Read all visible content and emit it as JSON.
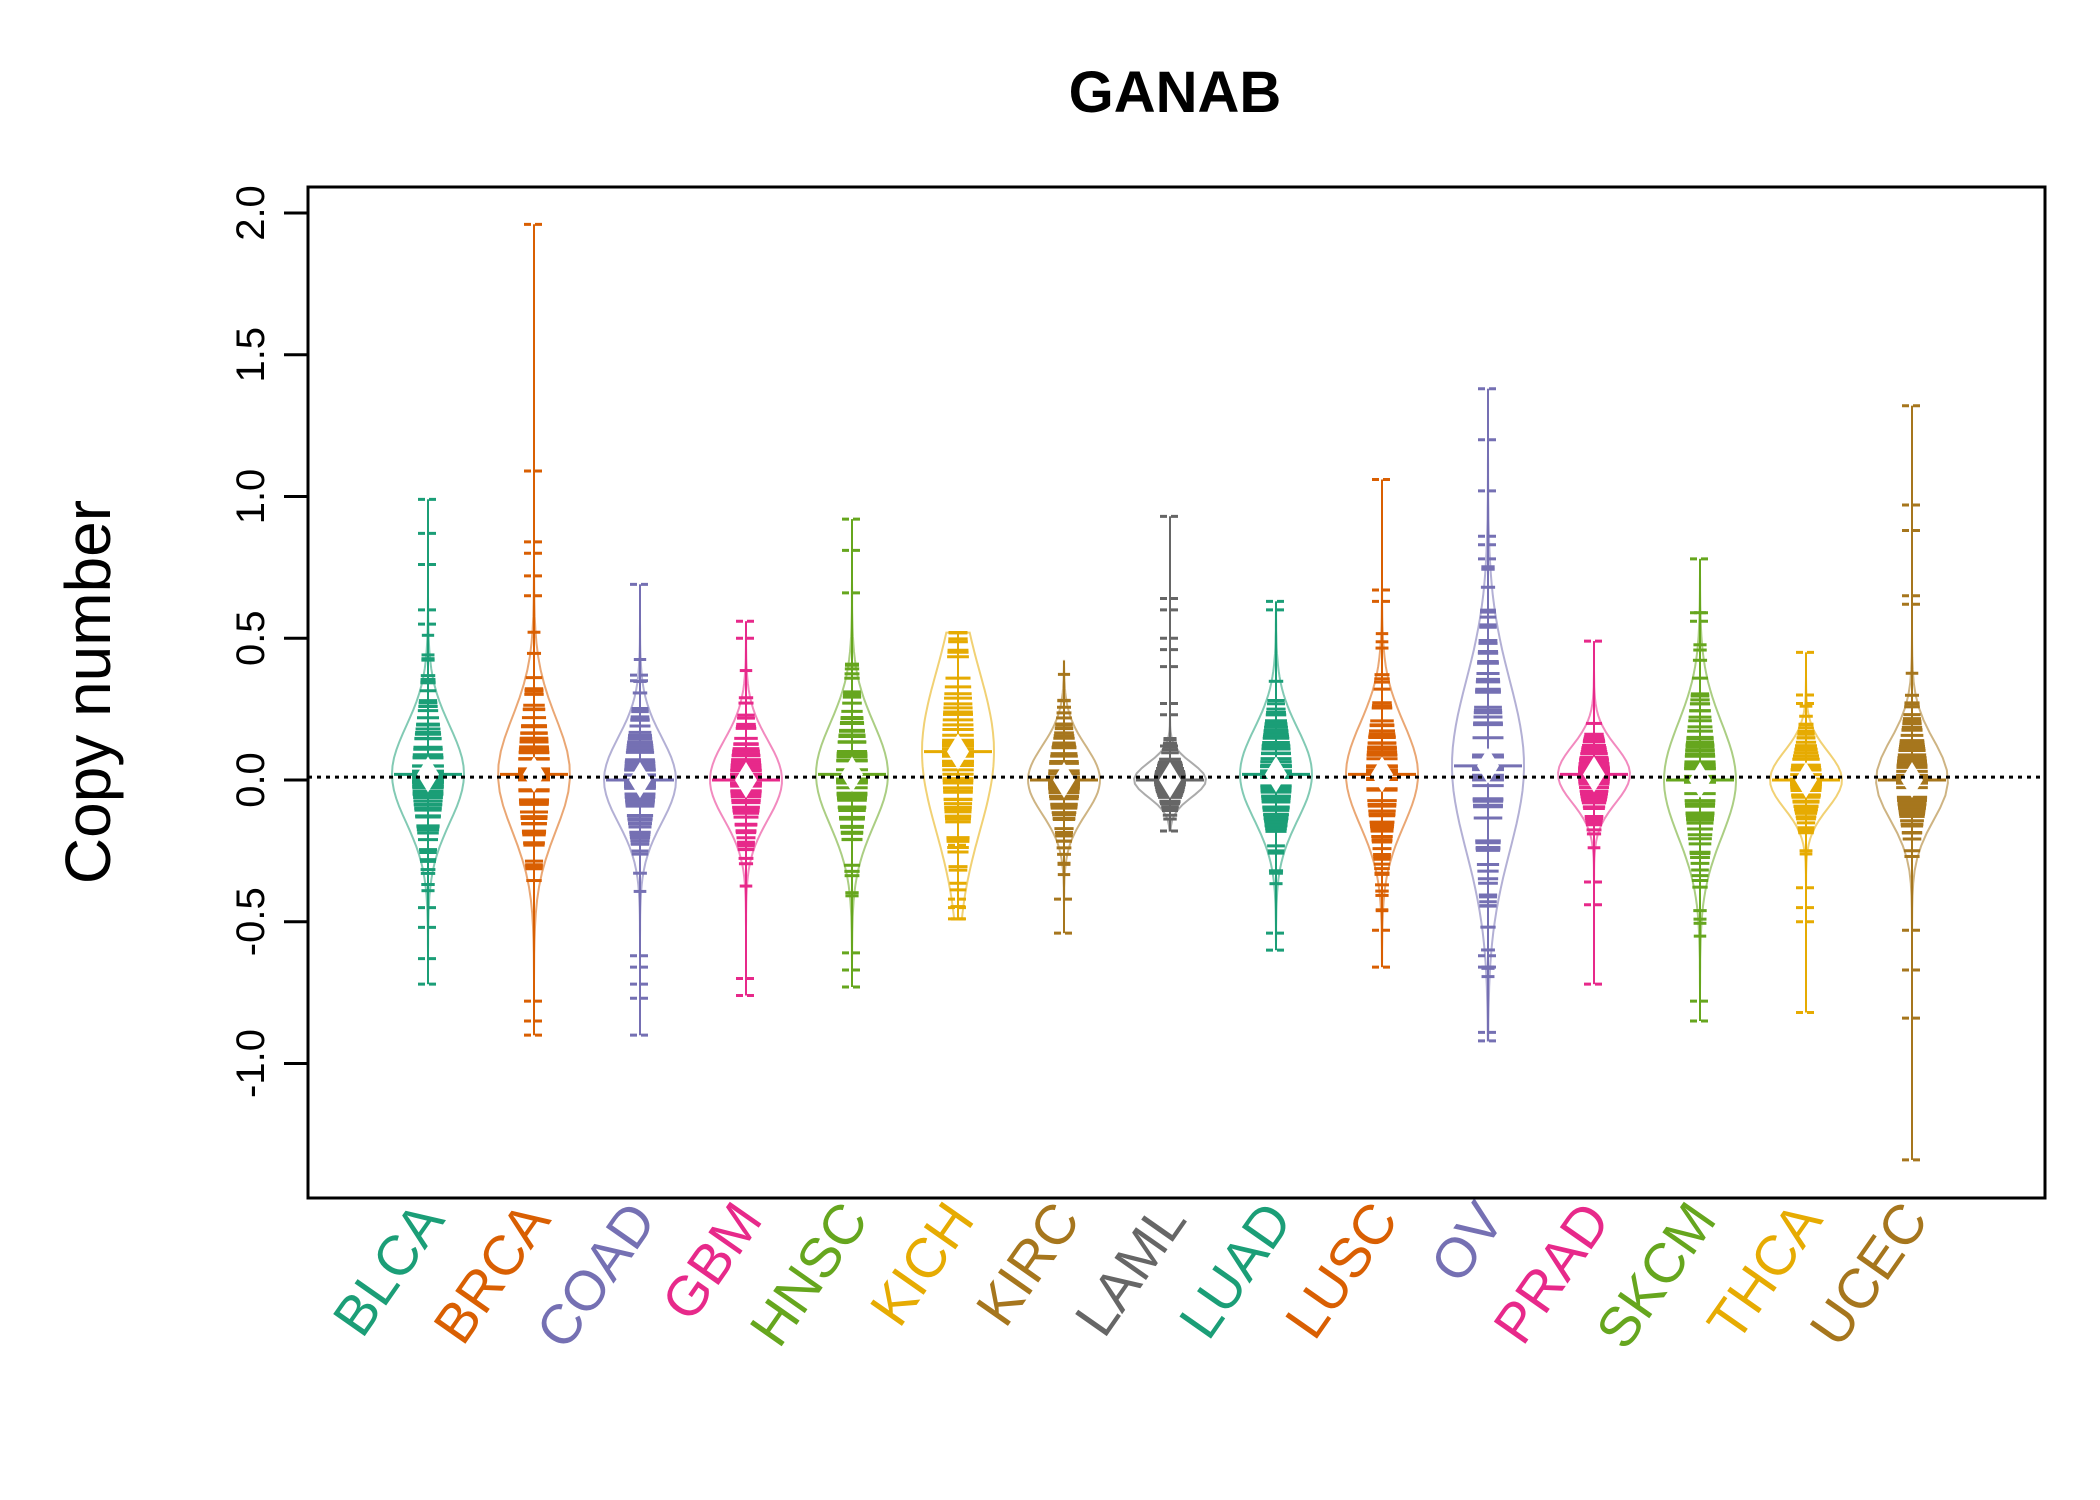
{
  "chart_data": {
    "type": "beanplot",
    "title": "GANAB",
    "xlabel": "",
    "ylabel": "Copy number",
    "ylim": [
      -1.5,
      2.1
    ],
    "yticks": [
      -1.0,
      -0.5,
      0.0,
      0.5,
      1.0,
      1.5,
      2.0
    ],
    "ytick_labels": [
      "-1.0",
      "-0.5",
      "0.0",
      "0.5",
      "1.0",
      "1.5",
      "2.0"
    ],
    "reference_line": 0.01,
    "categories": [
      "BLCA",
      "BRCA",
      "COAD",
      "GBM",
      "HNSC",
      "KICH",
      "KIRC",
      "LAML",
      "LUAD",
      "LUSC",
      "OV",
      "PRAD",
      "SKCM",
      "THCA",
      "UCEC"
    ],
    "colors": [
      "#1B9E77",
      "#D95F02",
      "#7570B3",
      "#E7298A",
      "#66A61E",
      "#E6AB02",
      "#A6761D",
      "#666666",
      "#1B9E77",
      "#D95F02",
      "#7570B3",
      "#E7298A",
      "#66A61E",
      "#E6AB02",
      "#A6761D"
    ],
    "series": [
      {
        "name": "BLCA",
        "min": -0.72,
        "max": 0.99,
        "median": 0.02,
        "spread": 0.17,
        "outliers": [
          0.99,
          0.87,
          0.76,
          0.6,
          0.55,
          -0.45,
          -0.52,
          -0.63,
          -0.72
        ]
      },
      {
        "name": "BRCA",
        "min": -0.9,
        "max": 1.96,
        "median": 0.02,
        "spread": 0.2,
        "outliers": [
          1.96,
          1.09,
          0.84,
          0.8,
          0.72,
          0.65,
          -0.78,
          -0.85,
          -0.9
        ]
      },
      {
        "name": "COAD",
        "min": -0.9,
        "max": 0.69,
        "median": 0.0,
        "spread": 0.15,
        "outliers": [
          0.69,
          0.37,
          0.35,
          -0.62,
          -0.66,
          -0.72,
          -0.77,
          -0.9
        ]
      },
      {
        "name": "GBM",
        "min": -0.76,
        "max": 0.56,
        "median": 0.0,
        "spread": 0.14,
        "outliers": [
          0.56,
          0.5,
          -0.7,
          -0.76
        ]
      },
      {
        "name": "HNSC",
        "min": -0.73,
        "max": 0.92,
        "median": 0.02,
        "spread": 0.18,
        "outliers": [
          0.92,
          0.81,
          0.66,
          -0.61,
          -0.67,
          -0.73
        ]
      },
      {
        "name": "KICH",
        "min": -0.49,
        "max": 0.52,
        "median": 0.1,
        "spread": 0.28,
        "outliers": [
          -0.23,
          -0.42,
          -0.45,
          -0.49
        ]
      },
      {
        "name": "KIRC",
        "min": -0.54,
        "max": 0.42,
        "median": 0.0,
        "spread": 0.12,
        "outliers": [
          -0.42,
          -0.54
        ]
      },
      {
        "name": "LAML",
        "min": -0.18,
        "max": 0.93,
        "median": 0.0,
        "spread": 0.06,
        "outliers": [
          0.93,
          0.64,
          0.6,
          0.5,
          0.46,
          0.4,
          0.27,
          0.23,
          0.12,
          -0.18
        ]
      },
      {
        "name": "LUAD",
        "min": -0.6,
        "max": 0.63,
        "median": 0.02,
        "spread": 0.16,
        "outliers": [
          0.63,
          0.6,
          -0.54,
          -0.6
        ]
      },
      {
        "name": "LUSC",
        "min": -0.66,
        "max": 1.06,
        "median": 0.02,
        "spread": 0.18,
        "outliers": [
          1.06,
          0.67,
          0.63,
          -0.53,
          -0.66
        ]
      },
      {
        "name": "OV",
        "min": -0.92,
        "max": 1.38,
        "median": 0.05,
        "spread": 0.3,
        "outliers": [
          1.38,
          1.2,
          1.02,
          0.86,
          0.83,
          0.78,
          -0.62,
          -0.66,
          -0.89,
          -0.92
        ]
      },
      {
        "name": "PRAD",
        "min": -0.72,
        "max": 0.49,
        "median": 0.02,
        "spread": 0.1,
        "outliers": [
          0.49,
          -0.36,
          -0.44,
          -0.72
        ]
      },
      {
        "name": "SKCM",
        "min": -0.85,
        "max": 0.78,
        "median": 0.0,
        "spread": 0.2,
        "outliers": [
          0.78,
          0.59,
          0.56,
          -0.78,
          -0.85
        ]
      },
      {
        "name": "THCA",
        "min": -0.82,
        "max": 0.45,
        "median": 0.0,
        "spread": 0.1,
        "outliers": [
          0.45,
          0.3,
          0.27,
          -0.38,
          -0.45,
          -0.5,
          -0.82
        ]
      },
      {
        "name": "UCEC",
        "min": -1.34,
        "max": 1.32,
        "median": 0.0,
        "spread": 0.14,
        "outliers": [
          1.32,
          0.97,
          0.88,
          0.65,
          0.62,
          -0.53,
          -0.67,
          -0.84,
          -1.34
        ]
      }
    ]
  }
}
